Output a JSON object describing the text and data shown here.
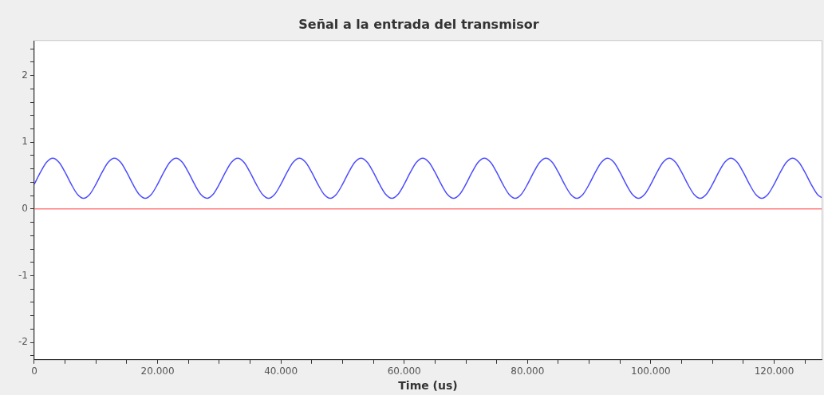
{
  "chart_data": {
    "type": "line",
    "title": "Señal a la entrada del transmisor",
    "xlabel": "Time (us)",
    "xlim": [
      0,
      127700
    ],
    "ylim": [
      -2.26,
      2.52
    ],
    "xticks": [
      0,
      {
        "value": 5000,
        "label": null
      },
      {
        "value": 10000,
        "label": null
      },
      {
        "value": 15000,
        "label": null
      },
      {
        "value": 20000,
        "label": "20.000"
      },
      {
        "value": 25000,
        "label": null
      },
      {
        "value": 30000,
        "label": null
      },
      {
        "value": 35000,
        "label": null
      },
      {
        "value": 40000,
        "label": "40.000"
      },
      {
        "value": 45000,
        "label": null
      },
      {
        "value": 50000,
        "label": null
      },
      {
        "value": 55000,
        "label": null
      },
      {
        "value": 60000,
        "label": "60.000"
      },
      {
        "value": 65000,
        "label": null
      },
      {
        "value": 70000,
        "label": null
      },
      {
        "value": 75000,
        "label": null
      },
      {
        "value": 80000,
        "label": "80.000"
      },
      {
        "value": 85000,
        "label": null
      },
      {
        "value": 90000,
        "label": null
      },
      {
        "value": 95000,
        "label": null
      },
      {
        "value": 100000,
        "label": "100.000"
      },
      {
        "value": 105000,
        "label": null
      },
      {
        "value": 110000,
        "label": null
      },
      {
        "value": 115000,
        "label": null
      },
      {
        "value": 120000,
        "label": "120.000"
      },
      {
        "value": 125000,
        "label": null
      }
    ],
    "yticks": [
      {
        "value": -2.2,
        "label": null
      },
      -2,
      {
        "value": -1.8,
        "label": null
      },
      {
        "value": -1.6,
        "label": null
      },
      {
        "value": -1.4,
        "label": null
      },
      {
        "value": -1.2,
        "label": null
      },
      -1,
      {
        "value": -0.8,
        "label": null
      },
      {
        "value": -0.6,
        "label": null
      },
      {
        "value": -0.4,
        "label": null
      },
      {
        "value": -0.2,
        "label": null
      },
      0,
      {
        "value": 0.2,
        "label": null
      },
      {
        "value": 0.4,
        "label": null
      },
      {
        "value": 0.6,
        "label": null
      },
      {
        "value": 0.8,
        "label": null
      },
      1,
      {
        "value": 1.2,
        "label": null
      },
      {
        "value": 1.4,
        "label": null
      },
      {
        "value": 1.6,
        "label": null
      },
      {
        "value": 1.8,
        "label": null
      },
      2,
      {
        "value": 2.2,
        "label": null
      },
      {
        "value": 2.4,
        "label": null
      }
    ],
    "marker": "none",
    "series": [
      {
        "color": "#4d4dff",
        "x": [
          0,
          1000,
          2000,
          3000,
          4000,
          5000,
          6000,
          7000,
          8000,
          9000,
          10000,
          11000,
          12000,
          13000,
          14000,
          15000,
          16000,
          17000,
          18000,
          19000,
          20000,
          21000,
          22000,
          23000,
          24000,
          25000,
          26000,
          27000,
          28000,
          29000,
          30000,
          31000,
          32000,
          33000,
          34000,
          35000,
          36000,
          37000,
          38000,
          39000,
          40000,
          41000,
          42000,
          43000,
          44000,
          45000,
          46000,
          47000,
          48000,
          49000,
          50000,
          51000,
          52000,
          53000,
          54000,
          55000,
          56000,
          57000,
          58000,
          59000,
          60000,
          61000,
          62000,
          63000,
          64000,
          65000,
          66000,
          67000,
          68000,
          69000,
          70000,
          71000,
          72000,
          73000,
          74000,
          75000,
          76000,
          77000,
          78000,
          79000,
          80000,
          81000,
          82000,
          83000,
          84000,
          85000,
          86000,
          87000,
          88000,
          89000,
          90000,
          91000,
          92000,
          93000,
          94000,
          95000,
          96000,
          97000,
          98000,
          99000,
          100000,
          101000,
          102000,
          103000,
          104000,
          105000,
          106000,
          107000,
          108000,
          109000,
          110000,
          111000,
          112000,
          113000,
          114000,
          115000,
          116000,
          117000,
          118000,
          119000,
          120000,
          121000,
          122000,
          123000,
          124000,
          125000,
          126000,
          127000,
          127700
        ],
        "values": [
          0.37,
          0.55,
          0.7,
          0.76,
          0.7,
          0.55,
          0.37,
          0.22,
          0.16,
          0.22,
          0.37,
          0.55,
          0.7,
          0.76,
          0.7,
          0.55,
          0.37,
          0.22,
          0.16,
          0.22,
          0.37,
          0.55,
          0.7,
          0.76,
          0.7,
          0.55,
          0.37,
          0.22,
          0.16,
          0.22,
          0.37,
          0.55,
          0.7,
          0.76,
          0.7,
          0.55,
          0.37,
          0.22,
          0.16,
          0.22,
          0.37,
          0.55,
          0.7,
          0.76,
          0.7,
          0.55,
          0.37,
          0.22,
          0.16,
          0.22,
          0.37,
          0.55,
          0.7,
          0.76,
          0.7,
          0.55,
          0.37,
          0.22,
          0.16,
          0.22,
          0.37,
          0.55,
          0.7,
          0.76,
          0.7,
          0.55,
          0.37,
          0.22,
          0.16,
          0.22,
          0.37,
          0.55,
          0.7,
          0.76,
          0.7,
          0.55,
          0.37,
          0.22,
          0.16,
          0.22,
          0.37,
          0.55,
          0.7,
          0.76,
          0.7,
          0.55,
          0.37,
          0.22,
          0.16,
          0.22,
          0.37,
          0.55,
          0.7,
          0.76,
          0.7,
          0.55,
          0.37,
          0.22,
          0.16,
          0.22,
          0.37,
          0.55,
          0.7,
          0.76,
          0.7,
          0.55,
          0.37,
          0.22,
          0.16,
          0.22,
          0.37,
          0.55,
          0.7,
          0.76,
          0.7,
          0.55,
          0.37,
          0.22,
          0.16,
          0.22,
          0.37,
          0.55,
          0.7,
          0.76,
          0.7,
          0.55,
          0.37,
          0.22,
          0.17
        ]
      },
      {
        "color": "#ff8080",
        "x": [
          0,
          127700
        ],
        "values": [
          0,
          0
        ]
      }
    ]
  }
}
